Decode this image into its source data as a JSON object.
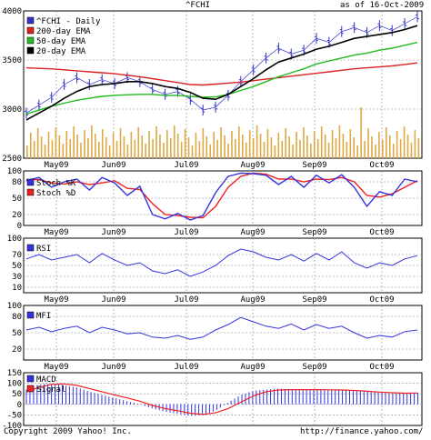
{
  "header": {
    "symbol": "^FCHI",
    "as_of": "as of 16-Oct-2009"
  },
  "footer": {
    "copyright": "Copyright 2009 Yahoo! Inc.",
    "url": "http://finance.yahoo.com/"
  },
  "colors": {
    "price": "#3333cc",
    "ema200": "#dd2222",
    "ema50": "#22bb22",
    "ema20": "#000000",
    "volume": "#ddaa44",
    "stoch_k": "#3333dd",
    "stoch_d": "#ee2222",
    "rsi": "#3333dd",
    "mfi": "#3333dd",
    "macd": "#3333dd",
    "signal": "#ee2222",
    "grid": "#888888"
  },
  "chart_data": [
    {
      "type": "line",
      "panel": "price",
      "x_labels": [
        "May09",
        "Jun09",
        "Jul09",
        "Aug09",
        "Sep09",
        "Oct09"
      ],
      "y_ticks": [
        2500,
        3000,
        3500,
        4000
      ],
      "ylim": [
        2500,
        4000
      ],
      "legend": [
        "^FCHI - Daily",
        "200-day EMA",
        "50-day EMA",
        "20-day EMA"
      ],
      "series": [
        {
          "name": "^FCHI - Daily",
          "values": [
            2960,
            3040,
            3120,
            3250,
            3320,
            3250,
            3300,
            3260,
            3320,
            3280,
            3200,
            3150,
            3180,
            3100,
            2990,
            3020,
            3140,
            3280,
            3400,
            3520,
            3620,
            3560,
            3600,
            3720,
            3680,
            3790,
            3830,
            3780,
            3850,
            3800,
            3870,
            3940
          ]
        },
        {
          "name": "200-day EMA",
          "values": [
            3420,
            3415,
            3410,
            3400,
            3390,
            3380,
            3370,
            3360,
            3345,
            3330,
            3310,
            3290,
            3270,
            3250,
            3245,
            3255,
            3265,
            3275,
            3290,
            3305,
            3320,
            3335,
            3350,
            3365,
            3380,
            3395,
            3410,
            3420,
            3430,
            3440,
            3455,
            3470
          ]
        },
        {
          "name": "50-day EMA",
          "values": [
            2950,
            2990,
            3030,
            3060,
            3090,
            3110,
            3130,
            3140,
            3145,
            3150,
            3150,
            3140,
            3140,
            3130,
            3120,
            3125,
            3150,
            3190,
            3230,
            3280,
            3330,
            3370,
            3410,
            3460,
            3490,
            3520,
            3550,
            3570,
            3600,
            3620,
            3650,
            3680
          ]
        },
        {
          "name": "20-day EMA",
          "values": [
            2890,
            2960,
            3030,
            3110,
            3180,
            3230,
            3250,
            3260,
            3280,
            3280,
            3260,
            3230,
            3210,
            3170,
            3110,
            3100,
            3150,
            3230,
            3310,
            3400,
            3480,
            3520,
            3560,
            3610,
            3640,
            3680,
            3720,
            3740,
            3760,
            3780,
            3810,
            3850
          ]
        }
      ]
    },
    {
      "type": "line",
      "panel": "stochastic",
      "y_ticks": [
        0,
        20,
        50,
        80,
        100
      ],
      "ylim": [
        0,
        100
      ],
      "legend": [
        "Stoch %K",
        "Stoch %D"
      ],
      "series": [
        {
          "name": "Stoch %K",
          "values": [
            82,
            88,
            70,
            80,
            85,
            65,
            88,
            78,
            55,
            72,
            20,
            12,
            22,
            10,
            18,
            60,
            90,
            96,
            95,
            92,
            75,
            90,
            70,
            92,
            78,
            93,
            70,
            35,
            62,
            55,
            85,
            80
          ]
        },
        {
          "name": "Stoch %D",
          "values": [
            84,
            84,
            78,
            76,
            80,
            75,
            78,
            82,
            68,
            66,
            40,
            20,
            18,
            15,
            14,
            35,
            70,
            90,
            96,
            94,
            85,
            85,
            80,
            85,
            84,
            88,
            80,
            55,
            52,
            58,
            70,
            82
          ]
        }
      ]
    },
    {
      "type": "line",
      "panel": "rsi",
      "y_ticks": [
        10,
        30,
        50,
        70,
        100
      ],
      "ylim": [
        0,
        100
      ],
      "legend": [
        "RSI"
      ],
      "series": [
        {
          "name": "RSI",
          "values": [
            62,
            70,
            60,
            65,
            70,
            55,
            72,
            60,
            50,
            55,
            40,
            35,
            42,
            30,
            38,
            50,
            68,
            80,
            75,
            65,
            60,
            70,
            58,
            72,
            60,
            75,
            55,
            45,
            55,
            50,
            62,
            68
          ]
        }
      ]
    },
    {
      "type": "line",
      "panel": "mfi",
      "y_ticks": [
        20,
        50,
        80,
        100
      ],
      "ylim": [
        0,
        100
      ],
      "legend": [
        "MFI"
      ],
      "series": [
        {
          "name": "MFI",
          "values": [
            55,
            60,
            52,
            58,
            62,
            50,
            60,
            55,
            48,
            50,
            42,
            40,
            45,
            38,
            42,
            55,
            65,
            78,
            70,
            62,
            58,
            66,
            55,
            65,
            58,
            62,
            50,
            40,
            45,
            42,
            52,
            55
          ]
        }
      ]
    },
    {
      "type": "bar",
      "panel": "macd",
      "y_ticks": [
        -100,
        -50,
        0,
        50,
        100,
        150
      ],
      "ylim": [
        -100,
        150
      ],
      "legend": [
        "MACD",
        "Signal"
      ],
      "series": [
        {
          "name": "MACD",
          "values": [
            70,
            95,
            98,
            90,
            80,
            60,
            45,
            30,
            15,
            0,
            -20,
            -35,
            -45,
            -55,
            -50,
            -30,
            10,
            45,
            65,
            70,
            75,
            72,
            70,
            72,
            68,
            70,
            65,
            60,
            55,
            50,
            52,
            55
          ]
        },
        {
          "name": "Signal",
          "values": [
            60,
            80,
            95,
            97,
            90,
            75,
            60,
            45,
            30,
            15,
            -5,
            -20,
            -30,
            -42,
            -48,
            -40,
            -20,
            10,
            40,
            60,
            68,
            70,
            70,
            70,
            69,
            68,
            66,
            62,
            58,
            55,
            53,
            54
          ]
        }
      ]
    }
  ]
}
